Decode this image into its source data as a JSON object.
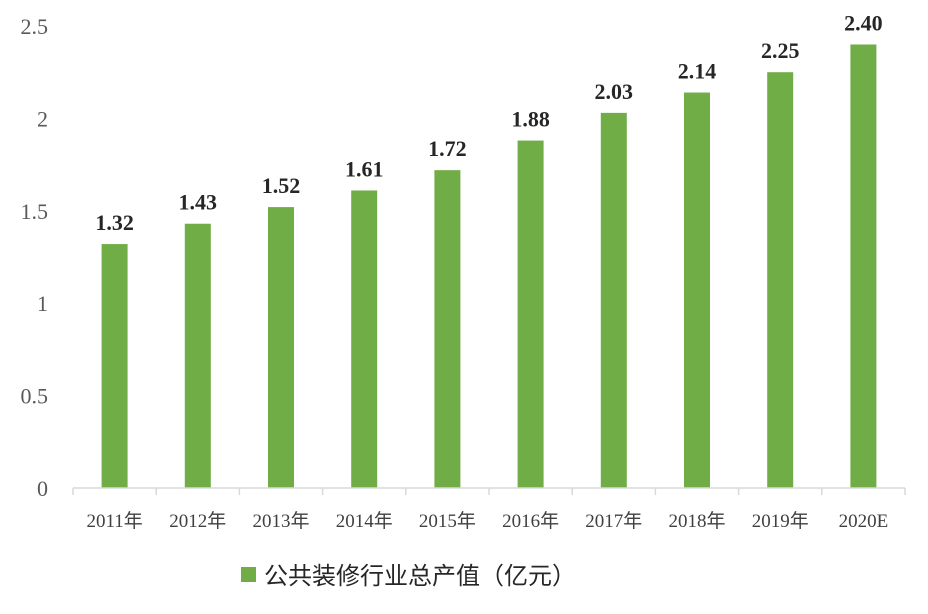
{
  "chart_data": {
    "type": "bar",
    "categories": [
      "2011年",
      "2012年",
      "2013年",
      "2014年",
      "2015年",
      "2016年",
      "2017年",
      "2018年",
      "2019年",
      "2020E"
    ],
    "series": [
      {
        "name": "公共装修行业总产值（亿元）",
        "values": [
          1.32,
          1.43,
          1.52,
          1.61,
          1.72,
          1.88,
          2.03,
          2.14,
          2.25,
          2.4
        ],
        "labels": [
          "1.32",
          "1.43",
          "1.52",
          "1.61",
          "1.72",
          "1.88",
          "2.03",
          "2.14",
          "2.25",
          "2.40"
        ],
        "color": "#70AD47"
      }
    ],
    "ylim": [
      0,
      2.5
    ],
    "yticks": [
      "0",
      "0.5",
      "1",
      "1.5",
      "2",
      "2.5"
    ],
    "grid": false,
    "legend_position": "bottom"
  }
}
